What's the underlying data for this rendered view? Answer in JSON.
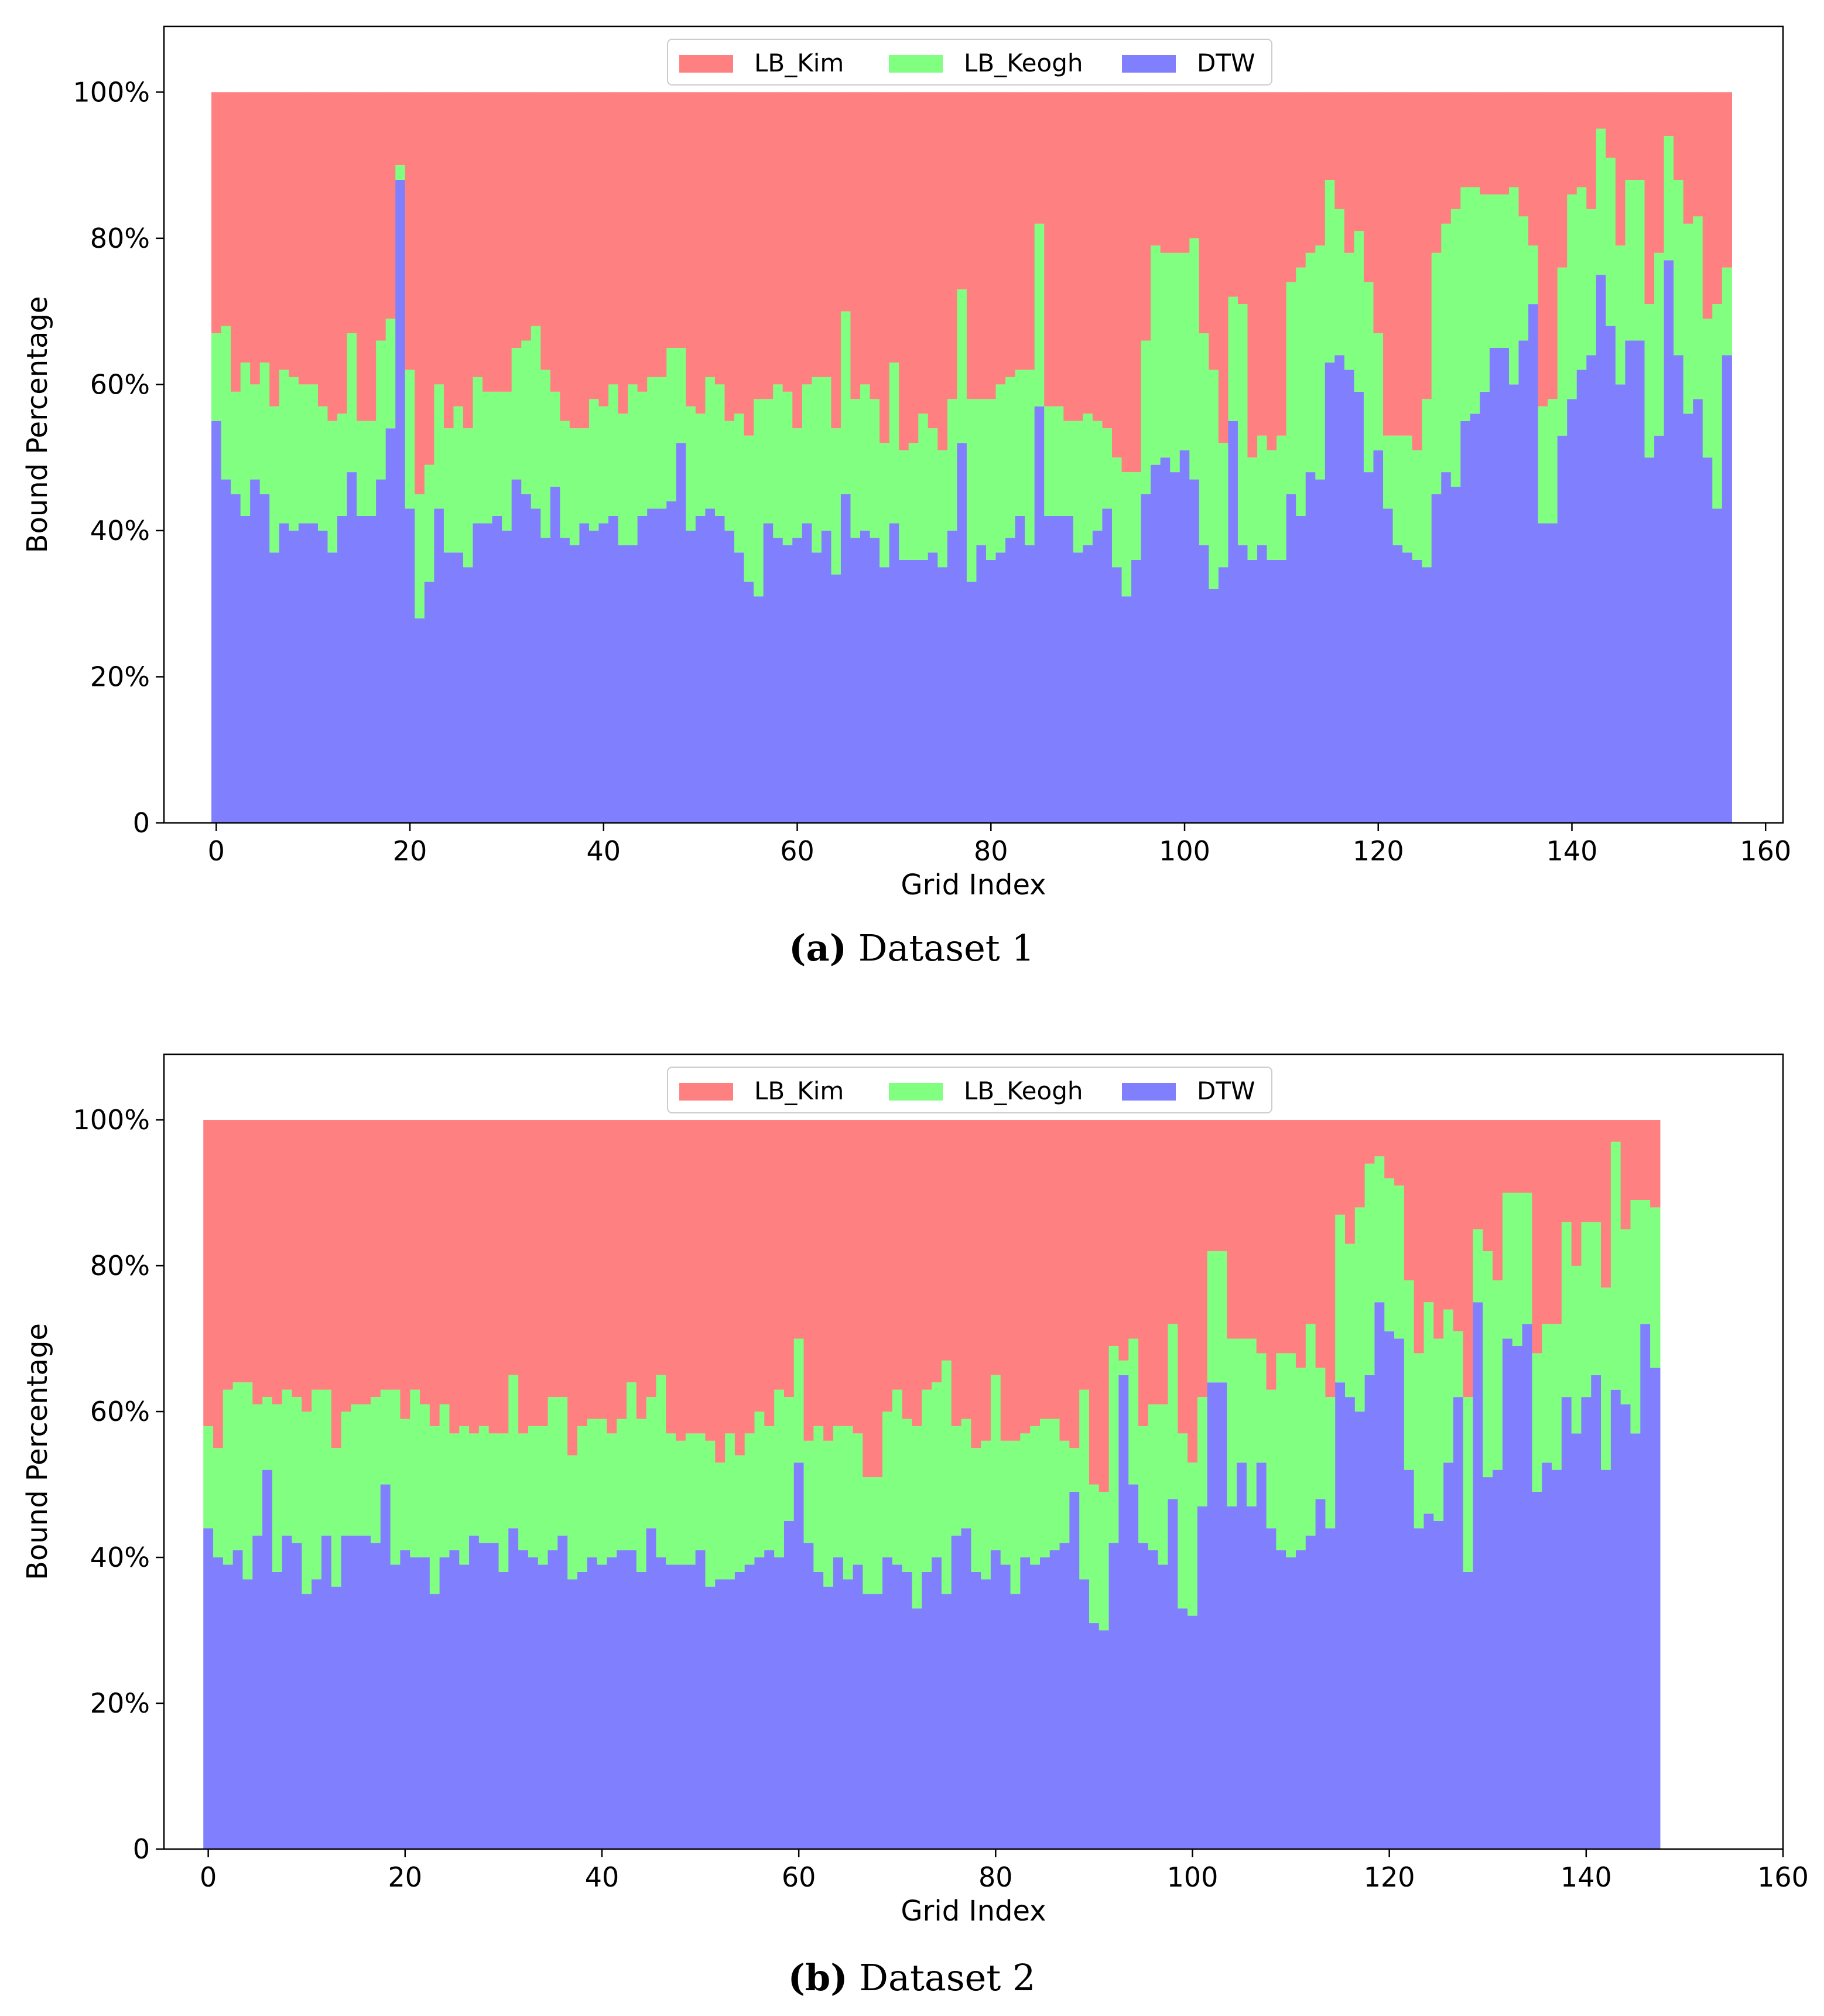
{
  "colors": {
    "LB_Kim": "#ff8080",
    "LB_Keogh": "#80ff80",
    "DTW": "#8080ff"
  },
  "chart_data": [
    {
      "type": "bar",
      "stacked": true,
      "caption_letter": "(a)",
      "caption_text": " Dataset 1",
      "xlabel": "Grid Index",
      "ylabel": "Bound Percentage",
      "ylim": [
        0,
        1.09
      ],
      "xlim": [
        -5.4,
        161.8
      ],
      "xticks": [
        0,
        20,
        40,
        60,
        80,
        100,
        120,
        140,
        160
      ],
      "xtick_labels": [
        "0",
        "20",
        "40",
        "60",
        "80",
        "100",
        "120",
        "140",
        "160"
      ],
      "yticks": [
        0,
        0.2,
        0.4,
        0.6,
        0.8,
        1.0
      ],
      "ytick_labels": [
        "0",
        "20%",
        "40%",
        "60%",
        "80%",
        "100%"
      ],
      "legend": [
        "LB_Kim",
        "LB_Keogh",
        "DTW"
      ],
      "legend_position": "top-center",
      "series": [
        {
          "name": "DTW",
          "values": [
            0.55,
            0.47,
            0.45,
            0.42,
            0.47,
            0.45,
            0.37,
            0.41,
            0.4,
            0.41,
            0.41,
            0.4,
            0.37,
            0.42,
            0.48,
            0.42,
            0.42,
            0.47,
            0.54,
            0.88,
            0.43,
            0.28,
            0.33,
            0.43,
            0.37,
            0.37,
            0.35,
            0.41,
            0.41,
            0.42,
            0.4,
            0.47,
            0.45,
            0.43,
            0.39,
            0.46,
            0.39,
            0.38,
            0.41,
            0.4,
            0.41,
            0.42,
            0.38,
            0.38,
            0.42,
            0.43,
            0.43,
            0.44,
            0.52,
            0.4,
            0.42,
            0.43,
            0.42,
            0.4,
            0.37,
            0.33,
            0.31,
            0.41,
            0.39,
            0.38,
            0.39,
            0.41,
            0.37,
            0.4,
            0.34,
            0.45,
            0.39,
            0.4,
            0.39,
            0.35,
            0.41,
            0.36,
            0.36,
            0.36,
            0.37,
            0.35,
            0.4,
            0.52,
            0.33,
            0.38,
            0.36,
            0.37,
            0.39,
            0.42,
            0.38,
            0.57,
            0.42,
            0.42,
            0.42,
            0.37,
            0.38,
            0.4,
            0.43,
            0.35,
            0.31,
            0.36,
            0.45,
            0.49,
            0.5,
            0.48,
            0.51,
            0.47,
            0.38,
            0.32,
            0.35,
            0.55,
            0.38,
            0.36,
            0.38,
            0.36,
            0.36,
            0.45,
            0.42,
            0.48,
            0.47,
            0.63,
            0.64,
            0.62,
            0.59,
            0.48,
            0.51,
            0.43,
            0.38,
            0.37,
            0.36,
            0.35,
            0.45,
            0.48,
            0.46,
            0.55,
            0.56,
            0.59,
            0.65,
            0.65,
            0.6,
            0.66,
            0.71,
            0.41,
            0.41,
            0.53,
            0.58,
            0.62,
            0.64,
            0.75,
            0.68,
            0.6,
            0.66,
            0.66,
            0.5,
            0.53,
            0.77,
            0.64,
            0.56,
            0.58,
            0.5,
            0.43,
            0.64
          ]
        },
        {
          "name": "LB_Keogh",
          "values": [
            0.12,
            0.21,
            0.14,
            0.21,
            0.13,
            0.18,
            0.2,
            0.21,
            0.21,
            0.19,
            0.19,
            0.17,
            0.18,
            0.14,
            0.19,
            0.13,
            0.13,
            0.19,
            0.15,
            0.02,
            0.19,
            0.17,
            0.16,
            0.17,
            0.17,
            0.2,
            0.19,
            0.2,
            0.18,
            0.17,
            0.19,
            0.18,
            0.21,
            0.25,
            0.23,
            0.13,
            0.16,
            0.16,
            0.13,
            0.18,
            0.16,
            0.18,
            0.18,
            0.22,
            0.17,
            0.18,
            0.18,
            0.21,
            0.13,
            0.17,
            0.14,
            0.18,
            0.18,
            0.15,
            0.19,
            0.2,
            0.27,
            0.17,
            0.21,
            0.21,
            0.15,
            0.19,
            0.24,
            0.21,
            0.2,
            0.25,
            0.19,
            0.2,
            0.19,
            0.17,
            0.22,
            0.15,
            0.16,
            0.2,
            0.17,
            0.16,
            0.18,
            0.21,
            0.25,
            0.2,
            0.22,
            0.23,
            0.22,
            0.2,
            0.24,
            0.25,
            0.15,
            0.15,
            0.13,
            0.18,
            0.18,
            0.15,
            0.11,
            0.15,
            0.17,
            0.12,
            0.21,
            0.3,
            0.28,
            0.3,
            0.27,
            0.33,
            0.29,
            0.3,
            0.17,
            0.17,
            0.33,
            0.14,
            0.15,
            0.15,
            0.17,
            0.29,
            0.34,
            0.3,
            0.32,
            0.25,
            0.2,
            0.16,
            0.22,
            0.26,
            0.16,
            0.1,
            0.15,
            0.16,
            0.15,
            0.23,
            0.33,
            0.34,
            0.38,
            0.32,
            0.31,
            0.27,
            0.21,
            0.21,
            0.27,
            0.17,
            0.08,
            0.16,
            0.17,
            0.23,
            0.28,
            0.25,
            0.2,
            0.2,
            0.23,
            0.19,
            0.22,
            0.22,
            0.21,
            0.25,
            0.17,
            0.24,
            0.26,
            0.25,
            0.19,
            0.28,
            0.12
          ]
        },
        {
          "name": "LB_Kim",
          "values": [
            0.33,
            0.32,
            0.41,
            0.37,
            0.4,
            0.37,
            0.43,
            0.38,
            0.39,
            0.4,
            0.4,
            0.43,
            0.45,
            0.44,
            0.33,
            0.45,
            0.45,
            0.34,
            0.31,
            0.1,
            0.38,
            0.55,
            0.51,
            0.4,
            0.46,
            0.43,
            0.46,
            0.39,
            0.41,
            0.41,
            0.41,
            0.35,
            0.34,
            0.32,
            0.38,
            0.41,
            0.45,
            0.46,
            0.46,
            0.42,
            0.43,
            0.4,
            0.44,
            0.4,
            0.41,
            0.39,
            0.39,
            0.35,
            0.35,
            0.43,
            0.44,
            0.39,
            0.4,
            0.45,
            0.44,
            0.47,
            0.42,
            0.42,
            0.4,
            0.41,
            0.46,
            0.4,
            0.39,
            0.39,
            0.46,
            0.3,
            0.42,
            0.4,
            0.42,
            0.48,
            0.37,
            0.49,
            0.48,
            0.44,
            0.46,
            0.49,
            0.42,
            0.27,
            0.42,
            0.42,
            0.42,
            0.4,
            0.39,
            0.38,
            0.38,
            0.18,
            0.43,
            0.43,
            0.45,
            0.45,
            0.44,
            0.45,
            0.46,
            0.5,
            0.52,
            0.52,
            0.34,
            0.21,
            0.22,
            0.22,
            0.22,
            0.2,
            0.33,
            0.38,
            0.48,
            0.28,
            0.29,
            0.5,
            0.47,
            0.49,
            0.47,
            0.26,
            0.24,
            0.22,
            0.21,
            0.12,
            0.16,
            0.22,
            0.19,
            0.26,
            0.33,
            0.47,
            0.47,
            0.47,
            0.49,
            0.42,
            0.22,
            0.18,
            0.16,
            0.13,
            0.13,
            0.14,
            0.14,
            0.14,
            0.13,
            0.17,
            0.21,
            0.43,
            0.42,
            0.24,
            0.14,
            0.13,
            0.16,
            0.05,
            0.09,
            0.11,
            0.12,
            0.15,
            0.24,
            0.26,
            0.06,
            0.12,
            0.16,
            0.21,
            0.27,
            0.27,
            0.24
          ]
        }
      ]
    },
    {
      "type": "bar",
      "stacked": true,
      "caption_letter": "(b)",
      "caption_text": " Dataset 2",
      "xlabel": "Grid Index",
      "ylabel": "Bound Percentage",
      "ylim": [
        0,
        1.09
      ],
      "xlim": [
        -4.5,
        160.0
      ],
      "xticks": [
        0,
        20,
        40,
        60,
        80,
        100,
        120,
        140,
        160
      ],
      "xtick_labels": [
        "0",
        "20",
        "40",
        "60",
        "80",
        "100",
        "120",
        "140",
        "160"
      ],
      "yticks": [
        0,
        0.2,
        0.4,
        0.6,
        0.8,
        1.0
      ],
      "ytick_labels": [
        "0",
        "20%",
        "40%",
        "60%",
        "80%",
        "100%"
      ],
      "legend": [
        "LB_Kim",
        "LB_Keogh",
        "DTW"
      ],
      "legend_position": "top-center",
      "series": [
        {
          "name": "DTW",
          "values": [
            0.44,
            0.4,
            0.39,
            0.41,
            0.37,
            0.43,
            0.52,
            0.38,
            0.43,
            0.42,
            0.35,
            0.37,
            0.43,
            0.36,
            0.43,
            0.43,
            0.43,
            0.42,
            0.5,
            0.39,
            0.41,
            0.4,
            0.4,
            0.35,
            0.4,
            0.41,
            0.39,
            0.43,
            0.42,
            0.42,
            0.38,
            0.44,
            0.41,
            0.4,
            0.39,
            0.41,
            0.43,
            0.37,
            0.38,
            0.4,
            0.39,
            0.4,
            0.41,
            0.41,
            0.38,
            0.44,
            0.4,
            0.39,
            0.39,
            0.39,
            0.41,
            0.36,
            0.37,
            0.37,
            0.38,
            0.39,
            0.4,
            0.41,
            0.4,
            0.45,
            0.53,
            0.42,
            0.38,
            0.36,
            0.4,
            0.37,
            0.39,
            0.35,
            0.35,
            0.4,
            0.39,
            0.38,
            0.33,
            0.38,
            0.4,
            0.35,
            0.43,
            0.44,
            0.38,
            0.37,
            0.41,
            0.39,
            0.35,
            0.4,
            0.39,
            0.4,
            0.41,
            0.42,
            0.49,
            0.37,
            0.31,
            0.3,
            0.42,
            0.65,
            0.5,
            0.42,
            0.41,
            0.39,
            0.48,
            0.33,
            0.32,
            0.47,
            0.64,
            0.64,
            0.47,
            0.53,
            0.47,
            0.53,
            0.44,
            0.41,
            0.4,
            0.41,
            0.43,
            0.48,
            0.44,
            0.64,
            0.62,
            0.6,
            0.65,
            0.75,
            0.71,
            0.7,
            0.52,
            0.44,
            0.46,
            0.45,
            0.53,
            0.62,
            0.38,
            0.75,
            0.51,
            0.52,
            0.7,
            0.69,
            0.72,
            0.49,
            0.53,
            0.52,
            0.62,
            0.57,
            0.62,
            0.65,
            0.52,
            0.63,
            0.61,
            0.57,
            0.72,
            0.66
          ]
        },
        {
          "name": "LB_Keogh",
          "values": [
            0.14,
            0.15,
            0.24,
            0.23,
            0.27,
            0.18,
            0.1,
            0.23,
            0.2,
            0.2,
            0.25,
            0.26,
            0.2,
            0.19,
            0.17,
            0.18,
            0.18,
            0.2,
            0.13,
            0.24,
            0.18,
            0.23,
            0.21,
            0.23,
            0.21,
            0.16,
            0.19,
            0.14,
            0.16,
            0.15,
            0.19,
            0.21,
            0.16,
            0.18,
            0.19,
            0.21,
            0.19,
            0.17,
            0.2,
            0.19,
            0.2,
            0.17,
            0.18,
            0.23,
            0.21,
            0.18,
            0.25,
            0.18,
            0.17,
            0.18,
            0.16,
            0.2,
            0.16,
            0.2,
            0.16,
            0.18,
            0.2,
            0.17,
            0.23,
            0.17,
            0.17,
            0.14,
            0.2,
            0.2,
            0.18,
            0.21,
            0.18,
            0.16,
            0.16,
            0.2,
            0.24,
            0.21,
            0.25,
            0.25,
            0.24,
            0.32,
            0.15,
            0.15,
            0.17,
            0.19,
            0.24,
            0.17,
            0.21,
            0.17,
            0.19,
            0.19,
            0.18,
            0.14,
            0.06,
            0.26,
            0.19,
            0.19,
            0.27,
            0.02,
            0.2,
            0.16,
            0.2,
            0.22,
            0.24,
            0.24,
            0.21,
            0.15,
            0.18,
            0.18,
            0.23,
            0.17,
            0.23,
            0.15,
            0.19,
            0.27,
            0.28,
            0.25,
            0.29,
            0.18,
            0.18,
            0.23,
            0.21,
            0.28,
            0.29,
            0.2,
            0.21,
            0.21,
            0.26,
            0.24,
            0.29,
            0.25,
            0.21,
            0.09,
            0.24,
            0.1,
            0.31,
            0.26,
            0.2,
            0.21,
            0.18,
            0.19,
            0.19,
            0.2,
            0.24,
            0.23,
            0.24,
            0.21,
            0.25,
            0.34,
            0.24,
            0.32,
            0.17,
            0.22
          ]
        },
        {
          "name": "LB_Kim",
          "values": [
            0.42,
            0.45,
            0.37,
            0.36,
            0.36,
            0.39,
            0.38,
            0.39,
            0.37,
            0.38,
            0.4,
            0.37,
            0.37,
            0.45,
            0.4,
            0.39,
            0.39,
            0.38,
            0.37,
            0.37,
            0.41,
            0.37,
            0.39,
            0.42,
            0.39,
            0.43,
            0.42,
            0.43,
            0.42,
            0.43,
            0.43,
            0.35,
            0.43,
            0.42,
            0.42,
            0.38,
            0.38,
            0.46,
            0.42,
            0.41,
            0.41,
            0.43,
            0.41,
            0.36,
            0.41,
            0.38,
            0.35,
            0.43,
            0.44,
            0.43,
            0.43,
            0.44,
            0.47,
            0.43,
            0.46,
            0.43,
            0.4,
            0.42,
            0.37,
            0.38,
            0.3,
            0.44,
            0.42,
            0.44,
            0.42,
            0.42,
            0.43,
            0.49,
            0.49,
            0.4,
            0.37,
            0.41,
            0.42,
            0.37,
            0.36,
            0.33,
            0.42,
            0.41,
            0.45,
            0.44,
            0.35,
            0.44,
            0.44,
            0.43,
            0.42,
            0.41,
            0.41,
            0.44,
            0.45,
            0.37,
            0.5,
            0.51,
            0.31,
            0.33,
            0.3,
            0.42,
            0.39,
            0.39,
            0.28,
            0.43,
            0.47,
            0.38,
            0.18,
            0.18,
            0.3,
            0.3,
            0.3,
            0.32,
            0.37,
            0.32,
            0.32,
            0.34,
            0.28,
            0.34,
            0.38,
            0.13,
            0.17,
            0.12,
            0.06,
            0.05,
            0.08,
            0.09,
            0.22,
            0.32,
            0.25,
            0.3,
            0.26,
            0.29,
            0.38,
            0.15,
            0.18,
            0.22,
            0.1,
            0.1,
            0.1,
            0.32,
            0.28,
            0.28,
            0.14,
            0.2,
            0.14,
            0.14,
            0.23,
            0.03,
            0.15,
            0.11,
            0.11,
            0.12
          ]
        }
      ]
    }
  ]
}
